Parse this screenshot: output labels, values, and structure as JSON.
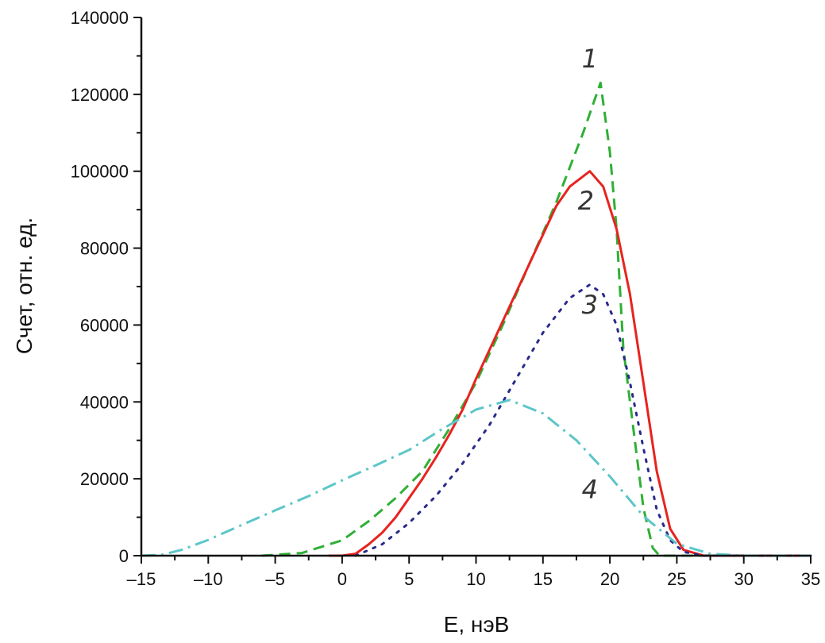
{
  "chart_data": {
    "type": "line",
    "title": "",
    "xlabel": "E, нэВ",
    "ylabel": "Счет, отн. ед.",
    "xlim": [
      -15,
      35
    ],
    "ylim": [
      0,
      140000
    ],
    "xticks": [
      -15,
      -10,
      -5,
      0,
      5,
      10,
      15,
      20,
      25,
      30,
      35
    ],
    "yticks": [
      0,
      20000,
      40000,
      60000,
      80000,
      100000,
      120000,
      140000
    ],
    "grid": false,
    "series": [
      {
        "label": "1",
        "color": "#2fb036",
        "style": "dashed",
        "x": [
          -6,
          -3,
          0,
          2,
          4,
          6,
          8,
          10,
          12,
          14,
          16,
          18,
          19.3,
          20,
          20.5,
          21,
          21.9,
          22.5,
          23.2,
          23.7,
          35
        ],
        "y": [
          0,
          700,
          4000,
          9000,
          15000,
          22000,
          33000,
          45000,
          60000,
          76000,
          92000,
          110000,
          123000,
          105000,
          85000,
          54000,
          29000,
          12400,
          2000,
          0,
          0
        ]
      },
      {
        "label": "2",
        "color": "#e8231f",
        "style": "solid",
        "x": [
          -1,
          0,
          1,
          2,
          3,
          4,
          5,
          6,
          7,
          8,
          9,
          10,
          11,
          12,
          13,
          14,
          15,
          16,
          17,
          18.5,
          19.5,
          20.5,
          21.5,
          22.5,
          23.5,
          24.5,
          25.5,
          27,
          35
        ],
        "y": [
          0,
          0,
          500,
          3000,
          6000,
          10000,
          15000,
          20000,
          25500,
          31500,
          38000,
          46000,
          53500,
          61000,
          68500,
          76000,
          83500,
          91000,
          96000,
          100000,
          96000,
          85000,
          68000,
          45000,
          22000,
          7000,
          1500,
          0,
          0
        ]
      },
      {
        "label": "3",
        "color": "#2a2a8c",
        "style": "dotted",
        "x": [
          1,
          3,
          5,
          7,
          9,
          11,
          13,
          15,
          17,
          18.5,
          19.5,
          20.5,
          21.5,
          22.5,
          23.5,
          24.5,
          25.5,
          27,
          35
        ],
        "y": [
          0,
          3000,
          8500,
          15500,
          24000,
          34000,
          46000,
          58000,
          67000,
          70500,
          68000,
          60000,
          45000,
          28000,
          12000,
          4000,
          1000,
          0,
          0
        ]
      },
      {
        "label": "4",
        "color": "#5cc6c8",
        "style": "dashdot",
        "x": [
          -15,
          -13.5,
          -12,
          -10,
          -7.5,
          -5,
          -2.5,
          0,
          2.5,
          5,
          7.5,
          10,
          12.5,
          15,
          17.5,
          20,
          22.5,
          25,
          27.5,
          30,
          35
        ],
        "y": [
          0,
          200,
          1500,
          4100,
          8000,
          11800,
          15500,
          19600,
          23500,
          27500,
          33000,
          38000,
          40500,
          37000,
          30000,
          20600,
          10300,
          3100,
          500,
          0,
          0
        ]
      }
    ],
    "annotations": [
      {
        "text": "1",
        "x": 18.5,
        "y": 127000
      },
      {
        "text": "2",
        "x": 18.2,
        "y": 90000
      },
      {
        "text": "3",
        "x": 18.5,
        "y": 63000
      },
      {
        "text": "4",
        "x": 18.5,
        "y": 15000
      }
    ]
  }
}
